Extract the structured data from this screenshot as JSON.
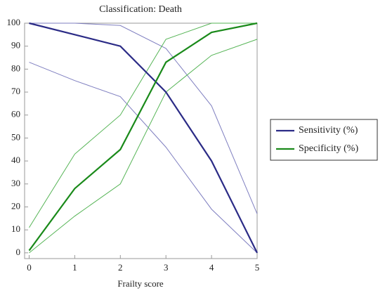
{
  "chart_data": {
    "type": "line",
    "title": "Classification: Death",
    "xlabel": "Frailty score",
    "x": [
      0,
      1,
      2,
      3,
      4,
      5
    ],
    "series": [
      {
        "name": "Sensitivity (%)",
        "color": "#2b2b86",
        "band_color": "#7f7fc0",
        "values": [
          100,
          95,
          90,
          70,
          40,
          0
        ],
        "upper": [
          100,
          100,
          99,
          89,
          64,
          17
        ],
        "lower": [
          83,
          75,
          68,
          46,
          19,
          0
        ]
      },
      {
        "name": "Specificity (%)",
        "color": "#1a8a1a",
        "band_color": "#55b455",
        "values": [
          1,
          28,
          45,
          83,
          96,
          100
        ],
        "upper": [
          11,
          43,
          60,
          93,
          100,
          100
        ],
        "lower": [
          0,
          16,
          30,
          70,
          86,
          93
        ]
      }
    ],
    "xlim": [
      -0.1,
      5
    ],
    "ylim": [
      -2.5,
      100
    ],
    "xticks": [
      0,
      1,
      2,
      3,
      4,
      5
    ],
    "yticks": [
      0,
      10,
      20,
      30,
      40,
      50,
      60,
      70,
      80,
      90,
      100
    ],
    "grid": false,
    "legend": "right"
  }
}
